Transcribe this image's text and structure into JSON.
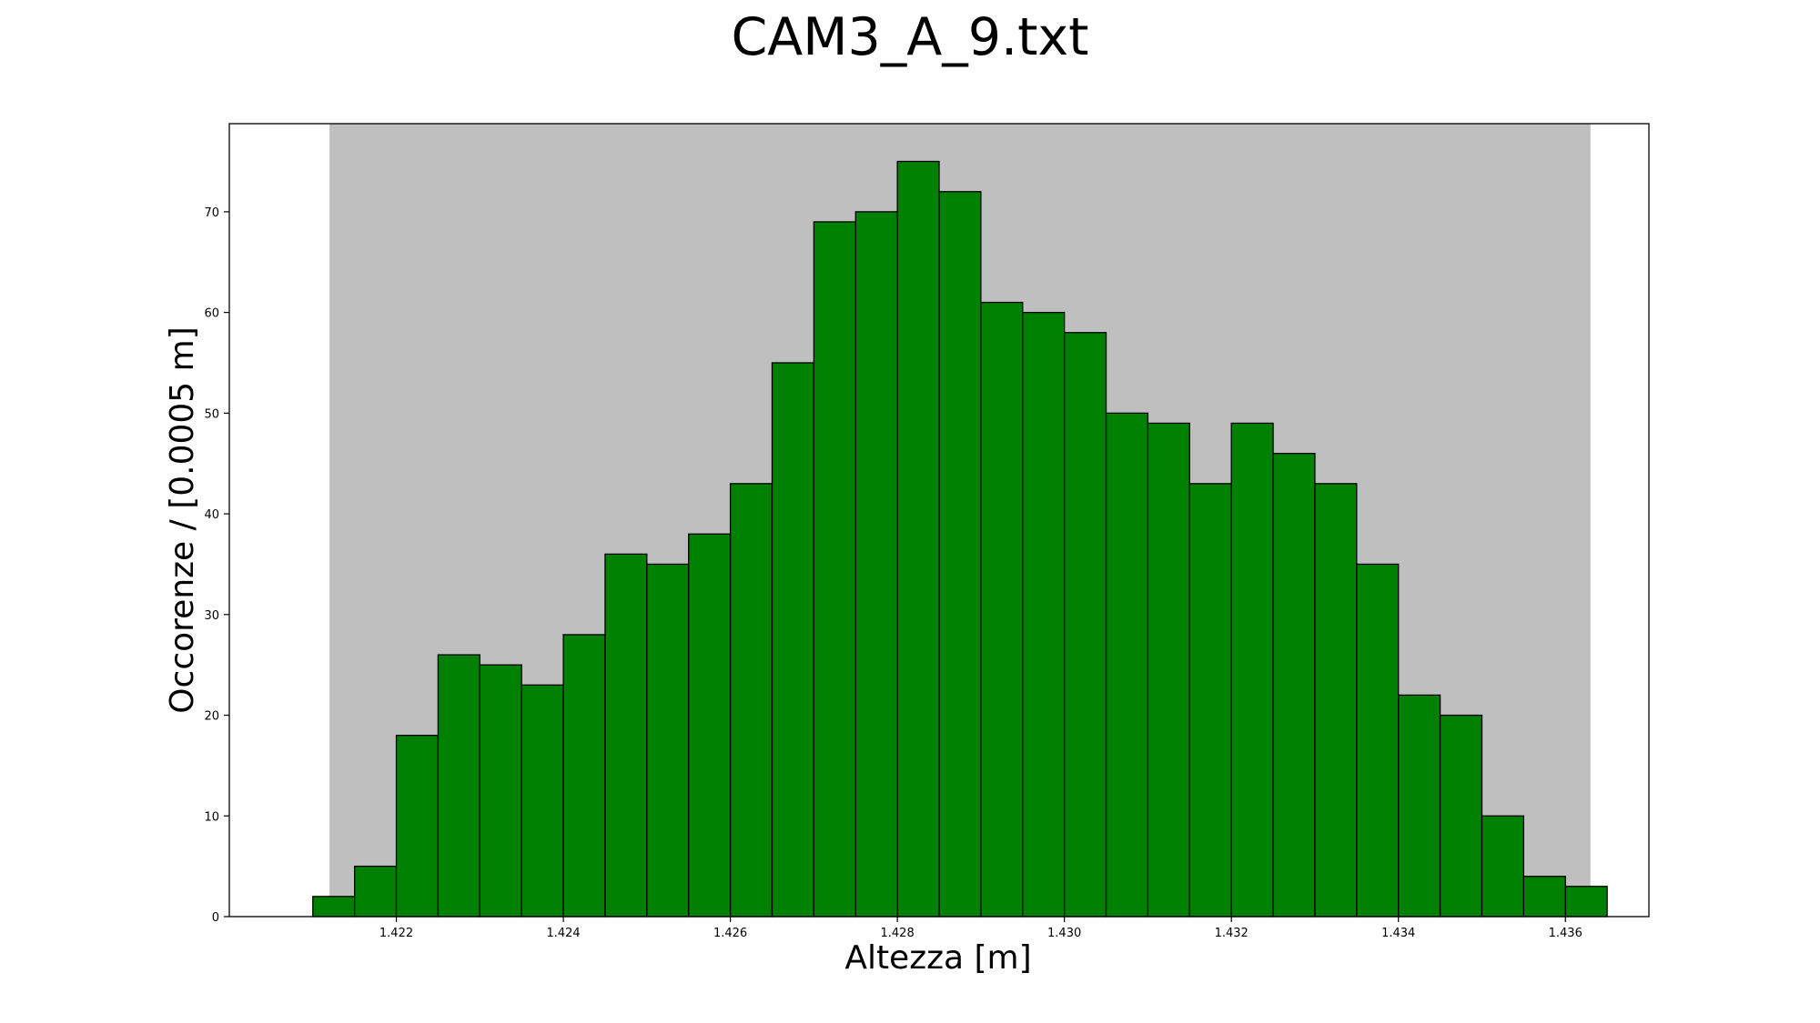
{
  "chart_data": {
    "type": "bar",
    "title": "CAM3_A_9.txt",
    "xlabel": "Altezza [m]",
    "ylabel": "Occorenze / [0.0005 m]",
    "bin_width": 0.0005,
    "bin_start": 1.421,
    "values": [
      2,
      5,
      18,
      26,
      25,
      23,
      28,
      36,
      35,
      38,
      43,
      55,
      69,
      70,
      75,
      72,
      61,
      60,
      58,
      50,
      49,
      43,
      49,
      46,
      43,
      35,
      22,
      20,
      10,
      4,
      3
    ],
    "xlim": [
      1.42,
      1.437
    ],
    "ylim": [
      0,
      78.75
    ],
    "shaded_region": [
      1.4212,
      1.4363
    ],
    "xticks": [
      "1.422",
      "1.424",
      "1.426",
      "1.428",
      "1.430",
      "1.432",
      "1.434",
      "1.436"
    ],
    "xtick_values": [
      1.422,
      1.424,
      1.426,
      1.428,
      1.43,
      1.432,
      1.434,
      1.436
    ],
    "yticks": [
      "0",
      "10",
      "20",
      "30",
      "40",
      "50",
      "60",
      "70"
    ],
    "ytick_values": [
      0,
      10,
      20,
      30,
      40,
      50,
      60,
      70
    ],
    "colors": {
      "bar": "#008000",
      "edge": "#000000",
      "shade": "#bfbfbf"
    },
    "grid": false
  }
}
